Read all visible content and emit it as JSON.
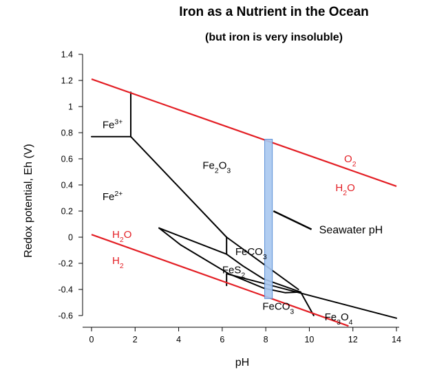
{
  "chart_data": {
    "type": "line",
    "title": "Iron as a Nutrient in the Ocean",
    "subtitle": "(but iron is very insoluble)",
    "xlabel": "pH",
    "ylabel": "Redox potential, Eh (V)",
    "xlim": [
      0,
      14
    ],
    "ylim": [
      -0.6,
      1.4
    ],
    "xticks": [
      0,
      2,
      4,
      6,
      8,
      10,
      12,
      14
    ],
    "xtick_labels": [
      "0",
      "2",
      "4",
      "6",
      "8",
      "10",
      "12",
      "14"
    ],
    "yticks": [
      -0.6,
      -0.4,
      -0.2,
      0,
      0.2,
      0.4,
      0.6,
      0.8,
      1,
      1.2,
      1.4
    ],
    "ytick_labels": [
      "-0.6",
      "-0.4",
      "-0.2",
      "0",
      "0.2",
      "0.4",
      "0.6",
      "0.8",
      "1",
      "1.2",
      "1.4"
    ],
    "grid": false,
    "colors": {
      "water_limits": "#e31e24",
      "boundaries": "#000000",
      "seawater_band": "#a9c8f0",
      "seawater_band_edge": "#5b8fd6"
    },
    "water_limit_lines": [
      {
        "upper": "O2",
        "lower": "H2O",
        "points": [
          [
            0,
            1.21
          ],
          [
            14,
            0.39
          ]
        ]
      },
      {
        "upper": "H2O",
        "lower": "H2",
        "points": [
          [
            0,
            0.02
          ],
          [
            11.8,
            -0.68
          ]
        ]
      }
    ],
    "boundary_lines": [
      {
        "points": [
          [
            1.8,
            1.11
          ],
          [
            1.8,
            0.77
          ]
        ]
      },
      {
        "points": [
          [
            0,
            0.77
          ],
          [
            1.8,
            0.77
          ]
        ]
      },
      {
        "points": [
          [
            1.8,
            0.77
          ],
          [
            6.2,
            0
          ]
        ]
      },
      {
        "points": [
          [
            6.2,
            0
          ],
          [
            6.2,
            -0.13
          ]
        ]
      },
      {
        "points": [
          [
            6.2,
            0
          ],
          [
            9.5,
            -0.4
          ]
        ]
      },
      {
        "points": [
          [
            3.1,
            0.07
          ],
          [
            6.2,
            -0.13
          ],
          [
            6.95,
            -0.22
          ],
          [
            7.9,
            -0.32
          ],
          [
            9.6,
            -0.42
          ]
        ]
      },
      {
        "points": [
          [
            3.1,
            0.07
          ],
          [
            4.1,
            -0.06
          ],
          [
            6.3,
            -0.28
          ],
          [
            7.9,
            -0.39
          ],
          [
            8.9,
            -0.425
          ],
          [
            9.6,
            -0.42
          ]
        ]
      },
      {
        "points": [
          [
            6.2,
            -0.28
          ],
          [
            6.2,
            -0.37
          ]
        ]
      },
      {
        "points": [
          [
            6.2,
            -0.28
          ],
          [
            14,
            -0.62
          ]
        ]
      },
      {
        "points": [
          [
            9.6,
            -0.42
          ],
          [
            10.2,
            -0.6
          ]
        ]
      }
    ],
    "seawater_pH_band": {
      "x": [
        7.95,
        8.3
      ],
      "y": [
        -0.47,
        0.75
      ]
    },
    "region_labels": [
      {
        "base": "Fe",
        "sup": "3+",
        "x": 0.5,
        "y": 0.86
      },
      {
        "base": "Fe",
        "sup": "2+",
        "x": 0.5,
        "y": 0.31
      },
      {
        "formula": [
          [
            "Fe",
            ""
          ],
          [
            "2",
            "sub"
          ],
          [
            "O",
            ""
          ],
          [
            "3",
            "sub"
          ]
        ],
        "x": 5.1,
        "y": 0.55
      },
      {
        "formula": [
          [
            "FeCO",
            ""
          ],
          [
            "3",
            "sub"
          ]
        ],
        "x": 6.6,
        "y": -0.11
      },
      {
        "formula": [
          [
            "FeS",
            ""
          ],
          [
            "2",
            "sub"
          ]
        ],
        "x": 6.0,
        "y": -0.25
      },
      {
        "formula": [
          [
            "FeCO",
            ""
          ],
          [
            "3",
            "sub"
          ]
        ],
        "x": 7.85,
        "y": -0.53
      },
      {
        "formula": [
          [
            "Fe",
            ""
          ],
          [
            "3",
            "sub"
          ],
          [
            "O",
            ""
          ],
          [
            "4",
            "sub"
          ]
        ],
        "x": 10.7,
        "y": -0.61
      }
    ],
    "water_labels": [
      {
        "formula": [
          [
            "O",
            ""
          ],
          [
            "2",
            "sub"
          ]
        ],
        "x": 11.6,
        "y": 0.6
      },
      {
        "formula": [
          [
            "H",
            ""
          ],
          [
            "2",
            "sub"
          ],
          [
            "O",
            ""
          ]
        ],
        "x": 11.2,
        "y": 0.38
      },
      {
        "formula": [
          [
            "H",
            ""
          ],
          [
            "2",
            "sub"
          ],
          [
            "O",
            ""
          ]
        ],
        "x": 0.95,
        "y": 0.02
      },
      {
        "formula": [
          [
            "H",
            ""
          ],
          [
            "2",
            "sub"
          ]
        ],
        "x": 0.95,
        "y": -0.18
      }
    ],
    "annotations": [
      {
        "text": "Seawater pH",
        "text_x": 10.45,
        "text_y": 0.06,
        "line": [
          [
            8.35,
            0.2
          ],
          [
            10.1,
            0.06
          ]
        ]
      }
    ]
  }
}
